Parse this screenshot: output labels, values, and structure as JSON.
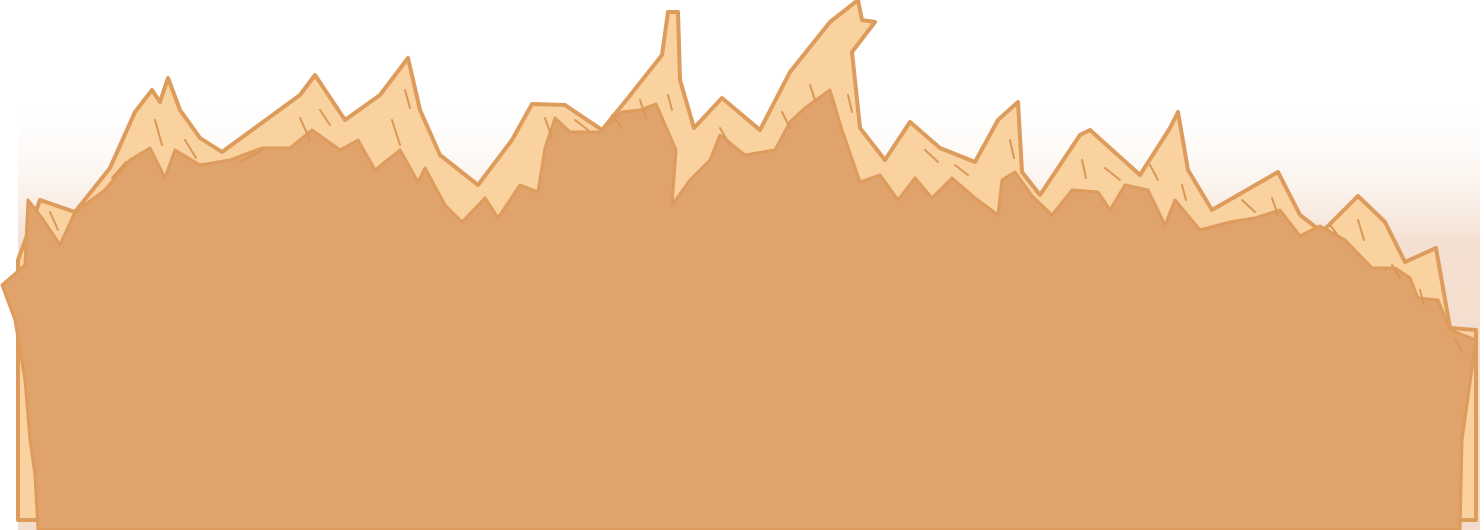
{
  "scene": {
    "description_key": "flame-border",
    "colors": {
      "background": "#ffffff",
      "glow": "#f3dccb",
      "body_fill": "#e0a36b",
      "tip_fill": "#f9d2a0",
      "outline": "#dd9b5c",
      "streak": "#d99856"
    },
    "shapes": [
      "flame-body",
      "flame-tips",
      "flame-streaks"
    ]
  }
}
